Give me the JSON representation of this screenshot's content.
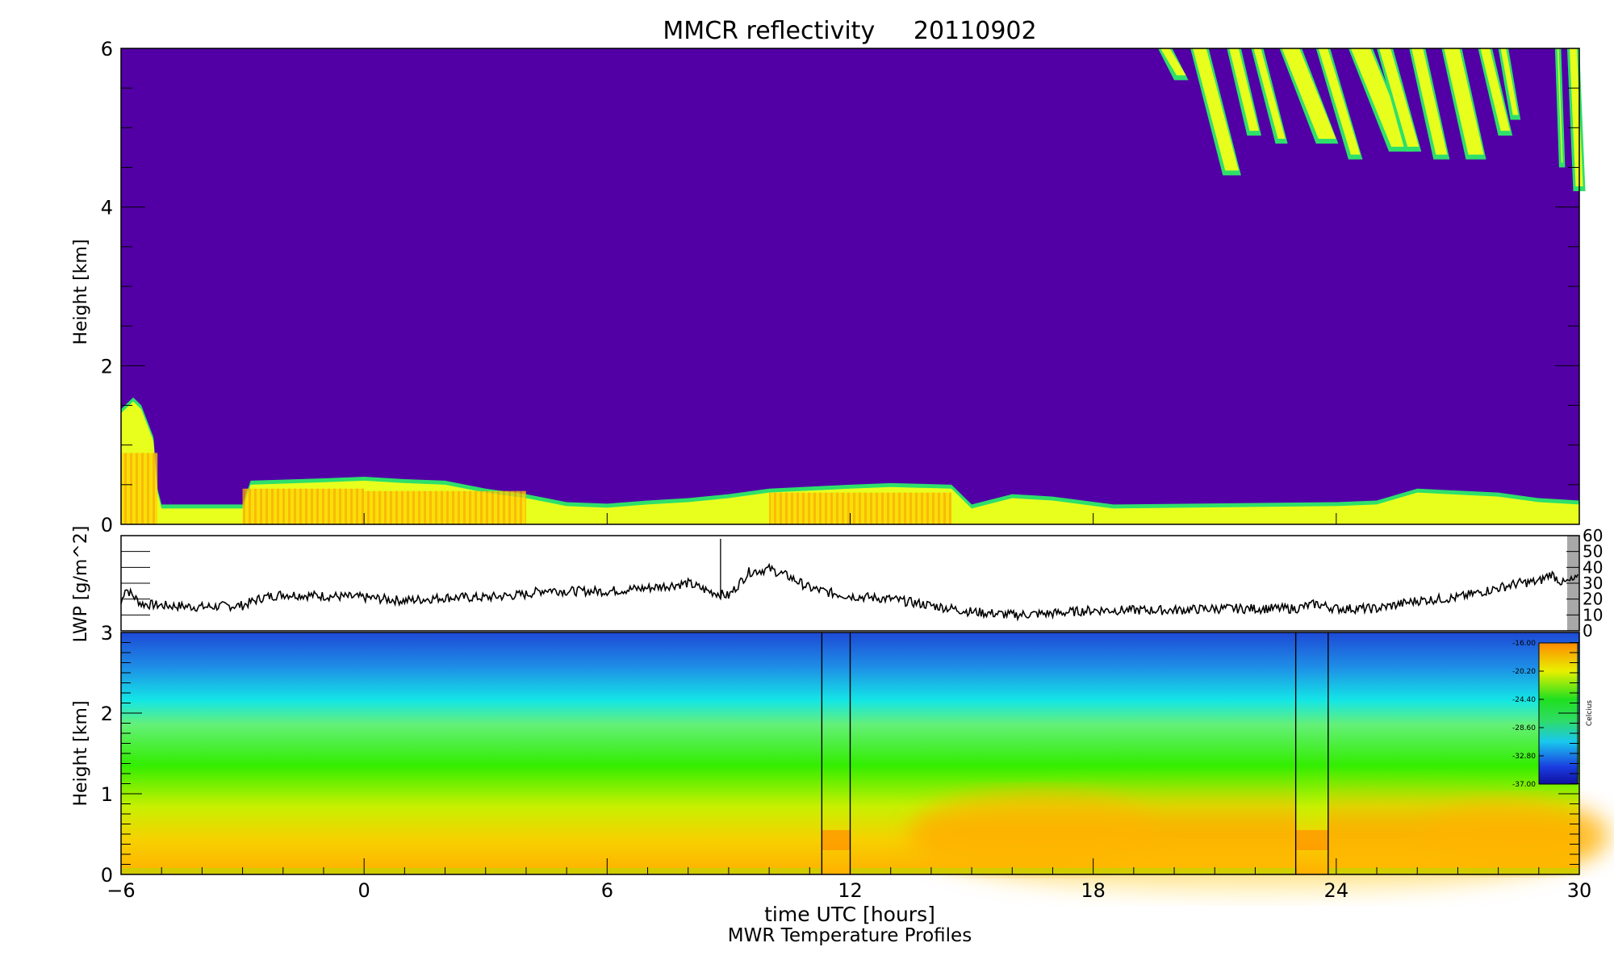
{
  "figure": {
    "title": "MMCR reflectivity     20110902",
    "xlabel": "time UTC [hours]",
    "subtitle": "MWR Temperature Profiles"
  },
  "chart_data": [
    {
      "type": "heatmap",
      "name": "MMCR reflectivity",
      "ylabel": "Height [km]",
      "xlim": [
        -6,
        30
      ],
      "ylim": [
        0,
        6
      ],
      "x_ticks": [
        -6,
        0,
        6,
        12,
        18,
        24,
        30
      ],
      "y_ticks": [
        0,
        2,
        4,
        6
      ],
      "colors": {
        "background": "#5200a6",
        "edge": "#2ee06a",
        "low": "#e8ff1e",
        "mid": "#ffe000",
        "high": "#ffa500"
      },
      "boundary_layer_cloud_top_km": [
        {
          "x": -6.0,
          "top": 1.45
        },
        {
          "x": -5.7,
          "top": 1.6
        },
        {
          "x": -5.5,
          "top": 1.5
        },
        {
          "x": -5.2,
          "top": 1.1
        },
        {
          "x": -5.1,
          "top": 0.45
        },
        {
          "x": -5.0,
          "top": 0.25
        },
        {
          "x": -4.0,
          "top": 0.25
        },
        {
          "x": -3.0,
          "top": 0.25
        },
        {
          "x": -2.8,
          "top": 0.55
        },
        {
          "x": -1.0,
          "top": 0.58
        },
        {
          "x": 0.0,
          "top": 0.6
        },
        {
          "x": 1.0,
          "top": 0.57
        },
        {
          "x": 2.0,
          "top": 0.55
        },
        {
          "x": 3.0,
          "top": 0.45
        },
        {
          "x": 4.0,
          "top": 0.38
        },
        {
          "x": 5.0,
          "top": 0.28
        },
        {
          "x": 6.0,
          "top": 0.26
        },
        {
          "x": 7.0,
          "top": 0.3
        },
        {
          "x": 8.0,
          "top": 0.33
        },
        {
          "x": 9.0,
          "top": 0.38
        },
        {
          "x": 10.0,
          "top": 0.45
        },
        {
          "x": 12.0,
          "top": 0.5
        },
        {
          "x": 13.0,
          "top": 0.52
        },
        {
          "x": 14.5,
          "top": 0.5
        },
        {
          "x": 15.0,
          "top": 0.25
        },
        {
          "x": 16.0,
          "top": 0.38
        },
        {
          "x": 17.0,
          "top": 0.35
        },
        {
          "x": 18.5,
          "top": 0.25
        },
        {
          "x": 24.0,
          "top": 0.28
        },
        {
          "x": 25.0,
          "top": 0.3
        },
        {
          "x": 26.0,
          "top": 0.45
        },
        {
          "x": 28.0,
          "top": 0.4
        },
        {
          "x": 29.0,
          "top": 0.33
        },
        {
          "x": 30.0,
          "top": 0.3
        }
      ],
      "cirrus_streaks": [
        {
          "x": 19.6,
          "width": 0.35,
          "bottom": 5.6,
          "slant": 0.4
        },
        {
          "x": 20.4,
          "width": 0.45,
          "bottom": 4.4,
          "slant": 0.8
        },
        {
          "x": 21.3,
          "width": 0.35,
          "bottom": 4.9,
          "slant": 0.5
        },
        {
          "x": 21.9,
          "width": 0.3,
          "bottom": 4.8,
          "slant": 0.6
        },
        {
          "x": 22.6,
          "width": 0.55,
          "bottom": 4.8,
          "slant": 0.9
        },
        {
          "x": 23.5,
          "width": 0.35,
          "bottom": 4.6,
          "slant": 0.8
        },
        {
          "x": 24.3,
          "width": 0.6,
          "bottom": 4.7,
          "slant": 1.0
        },
        {
          "x": 25.0,
          "width": 0.4,
          "bottom": 4.7,
          "slant": 0.7
        },
        {
          "x": 25.8,
          "width": 0.4,
          "bottom": 4.6,
          "slant": 0.6
        },
        {
          "x": 26.6,
          "width": 0.5,
          "bottom": 4.6,
          "slant": 0.6
        },
        {
          "x": 27.5,
          "width": 0.35,
          "bottom": 4.9,
          "slant": 0.5
        },
        {
          "x": 28.0,
          "width": 0.25,
          "bottom": 5.1,
          "slant": 0.3
        },
        {
          "x": 29.4,
          "width": 0.15,
          "bottom": 4.5,
          "slant": 0.1
        },
        {
          "x": 29.7,
          "width": 0.3,
          "bottom": 4.2,
          "slant": 0.15
        }
      ]
    },
    {
      "type": "line",
      "name": "LWP",
      "ylabel": "LWP [g/m^2]",
      "xlim": [
        -6,
        30
      ],
      "ylim": [
        0,
        60
      ],
      "right_ticks": [
        0,
        10,
        20,
        30,
        40,
        50,
        60
      ],
      "line_color": "#000000",
      "series_points": [
        {
          "x": -6.0,
          "y": 17
        },
        {
          "x": -5.9,
          "y": 27
        },
        {
          "x": -5.7,
          "y": 22
        },
        {
          "x": -5.5,
          "y": 17
        },
        {
          "x": -5.0,
          "y": 16
        },
        {
          "x": -4.0,
          "y": 15
        },
        {
          "x": -3.0,
          "y": 16
        },
        {
          "x": -2.5,
          "y": 21
        },
        {
          "x": -2.0,
          "y": 23
        },
        {
          "x": -1.0,
          "y": 22
        },
        {
          "x": 0.0,
          "y": 21
        },
        {
          "x": 1.0,
          "y": 19
        },
        {
          "x": 2.0,
          "y": 21
        },
        {
          "x": 3.0,
          "y": 21
        },
        {
          "x": 4.0,
          "y": 23
        },
        {
          "x": 4.5,
          "y": 26
        },
        {
          "x": 5.0,
          "y": 25
        },
        {
          "x": 6.0,
          "y": 25
        },
        {
          "x": 7.0,
          "y": 27
        },
        {
          "x": 8.0,
          "y": 30
        },
        {
          "x": 8.5,
          "y": 25
        },
        {
          "x": 9.0,
          "y": 22
        },
        {
          "x": 9.5,
          "y": 37
        },
        {
          "x": 10.0,
          "y": 39
        },
        {
          "x": 10.5,
          "y": 34
        },
        {
          "x": 11.0,
          "y": 27
        },
        {
          "x": 11.5,
          "y": 24
        },
        {
          "x": 12.0,
          "y": 22
        },
        {
          "x": 13.0,
          "y": 20
        },
        {
          "x": 14.0,
          "y": 16
        },
        {
          "x": 15.0,
          "y": 12
        },
        {
          "x": 16.0,
          "y": 10
        },
        {
          "x": 17.0,
          "y": 11
        },
        {
          "x": 18.0,
          "y": 13
        },
        {
          "x": 19.0,
          "y": 13
        },
        {
          "x": 20.0,
          "y": 13
        },
        {
          "x": 21.0,
          "y": 14
        },
        {
          "x": 22.0,
          "y": 14
        },
        {
          "x": 23.0,
          "y": 14
        },
        {
          "x": 23.5,
          "y": 17
        },
        {
          "x": 24.0,
          "y": 14
        },
        {
          "x": 25.0,
          "y": 14
        },
        {
          "x": 26.0,
          "y": 19
        },
        {
          "x": 27.0,
          "y": 21
        },
        {
          "x": 28.0,
          "y": 27
        },
        {
          "x": 28.5,
          "y": 30
        },
        {
          "x": 29.0,
          "y": 31
        },
        {
          "x": 29.3,
          "y": 36
        },
        {
          "x": 29.6,
          "y": 30
        },
        {
          "x": 30.0,
          "y": 33
        }
      ],
      "spikes": [
        {
          "x": 8.8,
          "y": 58
        }
      ]
    },
    {
      "type": "heatmap",
      "name": "MWR Temperature Profiles",
      "ylabel": "Height [km]",
      "xlim": [
        -6,
        30
      ],
      "ylim": [
        0,
        3
      ],
      "x_ticks": [
        -6,
        0,
        6,
        12,
        18,
        24,
        30
      ],
      "y_ticks": [
        0,
        1,
        2,
        3
      ],
      "colorbar": {
        "label": "Celcius",
        "tick_labels": [
          "-16.00",
          "-20.20",
          "-24.40",
          "-28.60",
          "-32.80",
          "-37.00"
        ],
        "tick_values": [
          -16.0,
          -20.2,
          -24.4,
          -28.6,
          -32.8,
          -37.0
        ],
        "range": [
          -37.0,
          -16.0
        ]
      },
      "data_gaps_hours": [
        [
          11.3,
          12.0
        ],
        [
          23.0,
          23.8
        ]
      ]
    }
  ]
}
